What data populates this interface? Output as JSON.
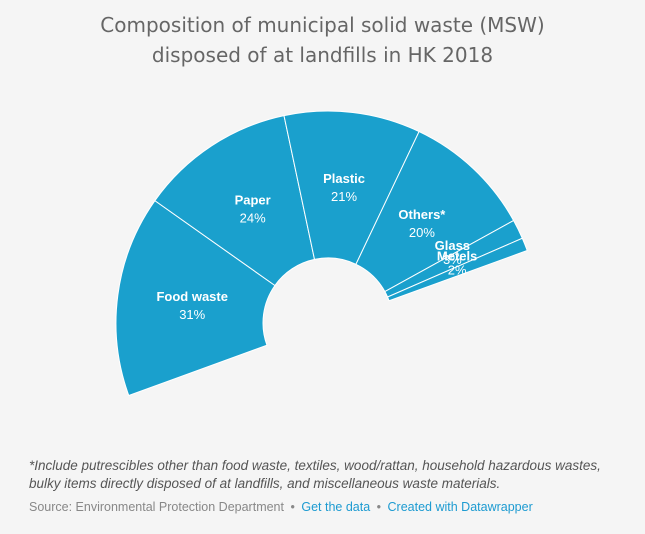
{
  "title_line1": "Composition of municipal solid waste (MSW)",
  "title_line2": "disposed of at landfills in HK 2018",
  "colors": {
    "slice": "#1aa0cd",
    "stroke": "#ffffff",
    "label": "#ffffff",
    "background": "#f5f5f5",
    "link": "#1d9bd1"
  },
  "chart_data": {
    "type": "pie",
    "variant": "half-donut",
    "title": "Composition of municipal solid waste (MSW) disposed of at landfills in HK 2018",
    "categories": [
      "Food waste",
      "Paper",
      "Plastic",
      "Others*",
      "Glass",
      "Metels"
    ],
    "values": [
      31,
      24,
      21,
      20,
      3,
      2
    ],
    "value_labels": [
      "31%",
      "24%",
      "21%",
      "20%",
      "3%",
      "2%"
    ],
    "unit": "%"
  },
  "note": "*Include putrescibles other than food waste, textiles, wood/rattan, household hazardous wastes, bulky items directly disposed of at landfills, and miscellaneous waste materials.",
  "footer": {
    "source": "Source: Environmental Protection Department",
    "sep": "•",
    "get_data": "Get the data",
    "created_with": "Created with Datawrapper"
  }
}
